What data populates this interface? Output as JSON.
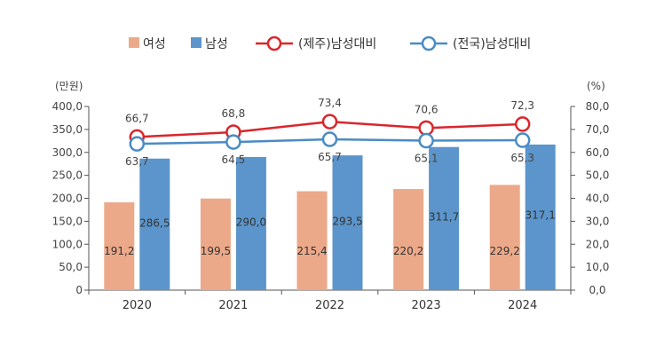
{
  "chart_data": {
    "type": "bar+line",
    "categories": [
      "2020",
      "2021",
      "2022",
      "2023",
      "2024"
    ],
    "bar_series": [
      {
        "name": "여성",
        "color": "#ECA989",
        "values": [
          191.2,
          199.5,
          215.4,
          220.2,
          229.2
        ],
        "labels": [
          "191,2",
          "199,5",
          "215,4",
          "220,2",
          "229,2"
        ]
      },
      {
        "name": "남성",
        "color": "#5B95CB",
        "values": [
          286.5,
          290.0,
          293.5,
          311.7,
          317.1
        ],
        "labels": [
          "286,5",
          "290,0",
          "293,5",
          "311,7",
          "317,1"
        ]
      }
    ],
    "line_series": [
      {
        "name": "(제주)남성대비",
        "color": "#D9262B",
        "values": [
          66.7,
          68.8,
          73.4,
          70.6,
          72.3
        ],
        "labels": [
          "66,7",
          "68,8",
          "73,4",
          "70,6",
          "72,3"
        ]
      },
      {
        "name": "(전국)남성대비",
        "color": "#4A8BC4",
        "values": [
          63.7,
          64.5,
          65.7,
          65.1,
          65.3
        ],
        "labels": [
          "63,7",
          "64,5",
          "65,7",
          "65,1",
          "65,3"
        ]
      }
    ],
    "y_left": {
      "unit": "(만원)",
      "min": 0,
      "max": 400,
      "ticks": [
        "0",
        "50,0",
        "100,0",
        "150,0",
        "200,0",
        "250,0",
        "300,0",
        "350,0",
        "400,0"
      ]
    },
    "y_right": {
      "unit": "(%)",
      "min": 0,
      "max": 80,
      "ticks": [
        "0,0",
        "10,0",
        "20,0",
        "30,0",
        "40,0",
        "50,0",
        "60,0",
        "70,0",
        "80,0"
      ]
    },
    "legend_position": "top-center"
  }
}
